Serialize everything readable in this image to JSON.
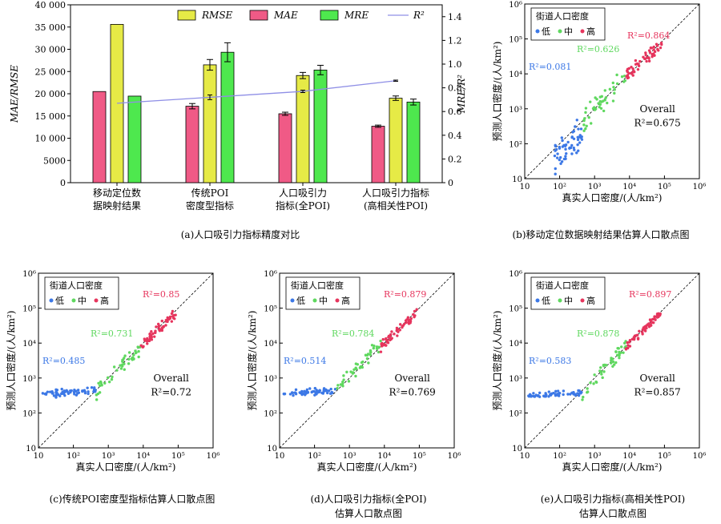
{
  "colors": {
    "rmse": "#e6ea46",
    "mae": "#f05a86",
    "mre": "#4ee84e",
    "r2_line": "#8f8fe6",
    "low": "#3c78e6",
    "mid": "#5fd85f",
    "high": "#e6355d"
  },
  "panel_a": {
    "caption": "(a)人口吸引力指标精度对比",
    "chart_data": {
      "type": "bar",
      "categories": [
        [
          "移动定位数",
          "据映射结果"
        ],
        [
          "传统POI",
          "密度型指标"
        ],
        [
          "人口吸引力",
          "指标(全POI)"
        ],
        [
          "人口吸引力指标",
          "(高相关性POI)"
        ]
      ],
      "series": [
        {
          "name": "MAE",
          "axis": "left",
          "values": [
            20500,
            17200,
            15500,
            12700
          ],
          "errors": [
            0,
            600,
            350,
            250
          ]
        },
        {
          "name": "RMSE",
          "axis": "left",
          "values": [
            35600,
            26500,
            24100,
            19000
          ],
          "errors": [
            0,
            1200,
            700,
            500
          ]
        },
        {
          "name": "MRE",
          "axis": "right",
          "values": [
            0.73,
            1.1,
            0.95,
            0.68
          ],
          "errors": [
            0,
            0.08,
            0.04,
            0.025
          ]
        },
        {
          "name": "R²",
          "axis": "right",
          "type": "line",
          "values": [
            0.67,
            0.72,
            0.77,
            0.86
          ],
          "errors": [
            0,
            0.02,
            0.01,
            0.005
          ]
        }
      ],
      "ylabel_left": "MAE/RMSE",
      "ylabel_right": "MRE/R²",
      "ylim_left": [
        0,
        40000
      ],
      "ylim_right": [
        0,
        1.5
      ],
      "yticks_left": [
        "0",
        "5000",
        "10 000",
        "15 000",
        "20 000",
        "25 000",
        "30 000",
        "35 000",
        "40 000"
      ],
      "yticks_right": [
        "0",
        "0.2",
        "0.4",
        "0.6",
        "0.8",
        "1.0",
        "1.2",
        "1.4"
      ],
      "legend": [
        "RMSE",
        "MAE",
        "MRE",
        "R²"
      ],
      "legend_position": "top"
    }
  },
  "scatter_common": {
    "xlabel": "真实人口密度/(人/km²)",
    "ylabel": "预测人口密度/(人/km²)",
    "legend_title": "街道人口密度",
    "legend_items": [
      "低",
      "中",
      "高"
    ],
    "overall_label": "Overall",
    "scale": "log",
    "range": [
      10,
      1000000
    ],
    "ticks": [
      "10",
      "10²",
      "10³",
      "10⁴",
      "10⁵",
      "10⁶"
    ]
  },
  "panels": [
    {
      "id": "b",
      "caption": [
        "(b)移动定位数据映射结果估算人口散点图"
      ],
      "chart_data": {
        "type": "scatter",
        "r2_low": "R²=0.081",
        "r2_mid": "R²=0.626",
        "r2_high": "R²=0.864",
        "r2_overall": "R²=0.675"
      }
    },
    {
      "id": "c",
      "caption": [
        "(c)传统POI密度型指标估算人口散点图"
      ],
      "chart_data": {
        "type": "scatter",
        "r2_low": "R²=0.485",
        "r2_mid": "R²=0.731",
        "r2_high": "R²=0.85",
        "r2_overall": "R²=0.72"
      }
    },
    {
      "id": "d",
      "caption": [
        "(d)人口吸引力指标(全POI)",
        "估算人口散点图"
      ],
      "chart_data": {
        "type": "scatter",
        "r2_low": "R²=0.514",
        "r2_mid": "R²=0.784",
        "r2_high": "R²=0.879",
        "r2_overall": "R²=0.769"
      }
    },
    {
      "id": "e",
      "caption": [
        "(e)人口吸引力指标(高相关性POI)",
        "估算人口散点图"
      ],
      "chart_data": {
        "type": "scatter",
        "r2_low": "R²=0.583",
        "r2_mid": "R²=0.878",
        "r2_high": "R²=0.897",
        "r2_overall": "R²=0.857"
      }
    }
  ]
}
